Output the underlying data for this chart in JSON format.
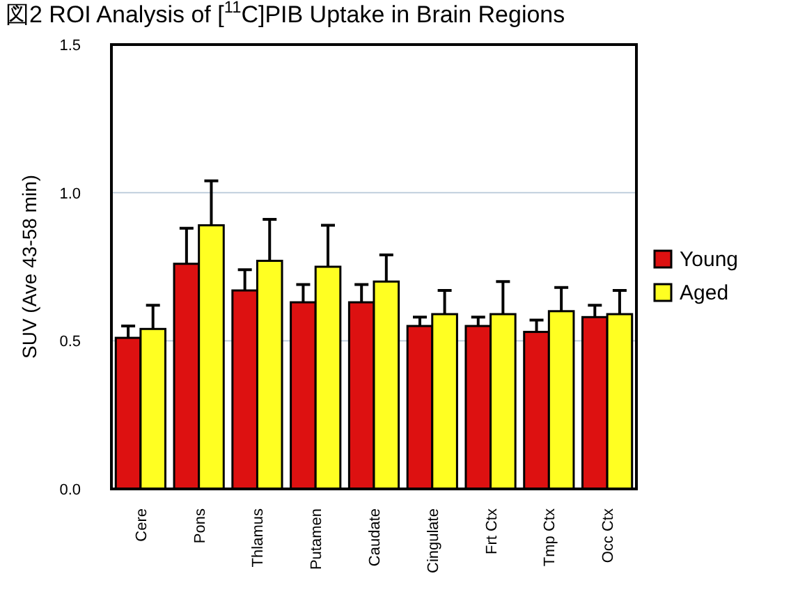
{
  "chart_data": {
    "type": "bar",
    "title": "図2  ROI Analysis of [$^{11}$C]PIB Uptake in Brain Regions",
    "ylabel": "SUV (Ave 43-58 min)",
    "categories": [
      "Cere",
      "Pons",
      "Thlamus",
      "Putamen",
      "Caudate",
      "Cingulate",
      "Frt Ctx",
      "Tmp Ctx",
      "Occ Ctx"
    ],
    "series": [
      {
        "name": "Young",
        "color": "#dd1111",
        "values": [
          0.51,
          0.76,
          0.67,
          0.63,
          0.63,
          0.55,
          0.55,
          0.53,
          0.58
        ],
        "errors": [
          [
            0.51,
            0.55
          ],
          [
            0.76,
            0.88
          ],
          [
            0.67,
            0.74
          ],
          [
            0.63,
            0.69
          ],
          [
            0.63,
            0.69
          ],
          [
            0.55,
            0.58
          ],
          [
            0.55,
            0.58
          ],
          [
            0.53,
            0.57
          ],
          [
            0.58,
            0.62
          ]
        ]
      },
      {
        "name": "Aged",
        "color": "#ffff22",
        "values": [
          0.54,
          0.89,
          0.77,
          0.75,
          0.7,
          0.59,
          0.59,
          0.6,
          0.59
        ],
        "errors": [
          [
            0.54,
            0.62
          ],
          [
            0.89,
            1.04
          ],
          [
            0.77,
            0.91
          ],
          [
            0.75,
            0.89
          ],
          [
            0.7,
            0.79
          ],
          [
            0.59,
            0.67
          ],
          [
            0.59,
            0.7
          ],
          [
            0.6,
            0.68
          ],
          [
            0.59,
            0.67
          ]
        ]
      }
    ],
    "ylim": [
      0,
      1.5
    ],
    "yticks": [
      {
        "value": 0,
        "label": "0.0"
      },
      {
        "value": 0.5,
        "label": "0.5"
      },
      {
        "value": 1,
        "label": "1.0"
      },
      {
        "value": 1.5,
        "label": "1.5"
      }
    ],
    "grid": "y",
    "legend": "right"
  }
}
